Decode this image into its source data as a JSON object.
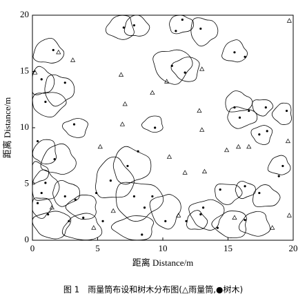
{
  "chart_data": {
    "type": "scatter",
    "caption": "图 1　雨量筒布设和树木分布图(△雨量筒,●树木)",
    "xlabel": "距离 Distance/m",
    "ylabel": "距离 Distance/m",
    "xlim": [
      0,
      20
    ],
    "ylim": [
      0,
      20
    ],
    "xticks": [
      0,
      5,
      10,
      15,
      20
    ],
    "yticks": [
      0,
      5,
      10,
      15,
      20
    ],
    "series": [
      {
        "marker": "triangle",
        "color": "#000000",
        "x": [
          2.0,
          3.1,
          0.2,
          6.8,
          7.1,
          6.9,
          9.2,
          10.3,
          13.0,
          12.8,
          13.0,
          14.9,
          15.8,
          16.6,
          19.6,
          5.2,
          10.5,
          11.7,
          13.2,
          6.2,
          11.2,
          15.5,
          18.4,
          19.7,
          19.7,
          1.5,
          4.7
        ],
        "y": [
          16.7,
          16.0,
          14.9,
          14.7,
          12.1,
          10.3,
          13.1,
          14.1,
          15.2,
          11.5,
          9.8,
          8.0,
          8.3,
          8.3,
          8.8,
          8.3,
          7.4,
          6.0,
          6.1,
          2.6,
          2.2,
          2.0,
          1.1,
          2.2,
          19.5,
          2.9,
          1.1
        ]
      },
      {
        "marker": "dot",
        "color": "#000000",
        "x": [
          1.6,
          0.7,
          2.5,
          1.0,
          3.2,
          0.4,
          1.7,
          1.0,
          0.7,
          0.4,
          1.2,
          2.5,
          3.3,
          2.8,
          3.9,
          6.0,
          7.3,
          8.1,
          7.8,
          9.2,
          10.2,
          8.6,
          7.0,
          7.8,
          11.0,
          12.9,
          11.5,
          10.7,
          11.7,
          9.4,
          15.5,
          16.3,
          15.5,
          15.9,
          16.6,
          17.9,
          17.4,
          18.0,
          19.5,
          19.2,
          18.9,
          17.4,
          16.3,
          14.4,
          13.1,
          14.2,
          16.3,
          11.8,
          12.9,
          4.9,
          5.4,
          8.4
        ],
        "y": [
          16.9,
          14.3,
          14.0,
          12.3,
          10.3,
          8.8,
          7.2,
          5.1,
          4.2,
          3.3,
          2.3,
          3.9,
          3.6,
          1.7,
          2.0,
          5.3,
          6.6,
          7.9,
          3.9,
          3.9,
          1.7,
          2.9,
          18.9,
          19.1,
          18.6,
          18.8,
          19.6,
          15.5,
          14.9,
          10.0,
          16.7,
          16.3,
          11.8,
          10.9,
          11.5,
          11.8,
          9.4,
          9.7,
          11.5,
          6.6,
          5.7,
          4.2,
          4.8,
          4.5,
          2.9,
          1.1,
          1.8,
          1.7,
          2.3,
          4.2,
          1.7,
          0.5
        ]
      }
    ]
  }
}
